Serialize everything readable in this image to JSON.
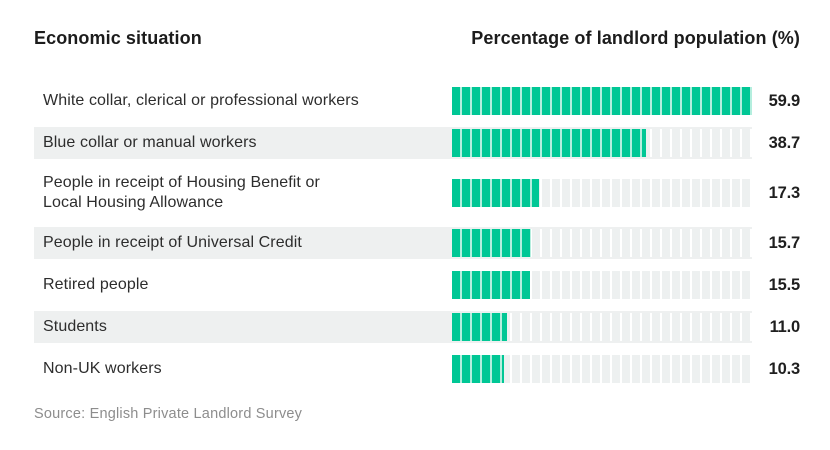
{
  "header": {
    "left_title": "Economic situation",
    "right_title": "Percentage of landlord population (%)"
  },
  "footer": {
    "source": "Source: English Private Landlord Survey"
  },
  "colors": {
    "bar_fill": "#00c795",
    "bar_empty": "#edf0f0",
    "row_band": "#eef0f0",
    "heading_text": "#1c1c1c",
    "label_text": "#2d2d2d",
    "value_text": "#1f1f1f",
    "source_text": "#8d8d8d"
  },
  "chart_data": {
    "type": "bar",
    "orientation": "horizontal",
    "style": "segmented",
    "segments_per_bar": 30,
    "category_header": "Economic situation",
    "value_header": "Percentage of landlord population (%)",
    "xlim": [
      0,
      59.9
    ],
    "grid": false,
    "legend": false,
    "rows": [
      {
        "label": "White collar, clerical or professional workers",
        "value": 59.9,
        "display_value": "59.9"
      },
      {
        "label": "Blue collar or manual workers",
        "value": 38.7,
        "display_value": "38.7"
      },
      {
        "label": "People in receipt of Housing Benefit or\nLocal Housing Allowance",
        "value": 17.3,
        "display_value": "17.3"
      },
      {
        "label": "People in receipt of Universal Credit",
        "value": 15.7,
        "display_value": "15.7"
      },
      {
        "label": "Retired people",
        "value": 15.5,
        "display_value": "15.5"
      },
      {
        "label": "Students",
        "value": 11.0,
        "display_value": "11.0"
      },
      {
        "label": "Non-UK workers",
        "value": 10.3,
        "display_value": "10.3"
      }
    ],
    "source": "Source: English Private Landlord Survey"
  }
}
